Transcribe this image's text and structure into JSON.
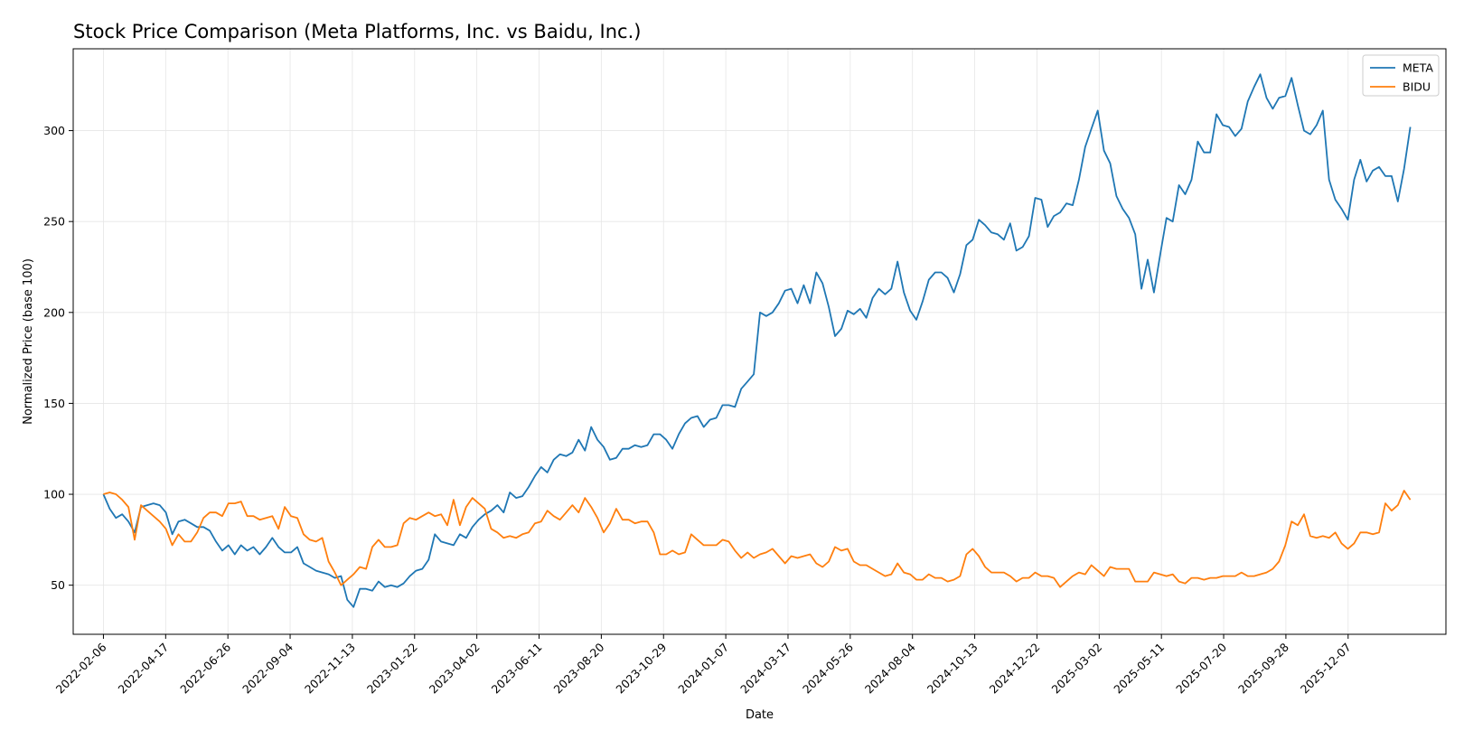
{
  "chart_data": {
    "type": "line",
    "title": "Stock Price Comparison (Meta Platforms, Inc. vs Baidu, Inc.)",
    "xlabel": "Date",
    "ylabel": "Normalized Price (base 100)",
    "x_start": "2022-02-06",
    "x_end": "2026-02-15",
    "x_ticks": [
      "2022-02-06",
      "2022-04-17",
      "2022-06-26",
      "2022-09-04",
      "2022-11-13",
      "2023-01-22",
      "2023-04-02",
      "2023-06-11",
      "2023-08-20",
      "2023-10-29",
      "2024-01-07",
      "2024-03-17",
      "2024-05-26",
      "2024-08-04",
      "2024-10-13",
      "2024-12-22",
      "2025-03-02",
      "2025-05-11",
      "2025-07-20",
      "2025-09-28",
      "2025-12-07"
    ],
    "y_ticks": [
      50,
      100,
      150,
      200,
      250,
      300
    ],
    "ylim": [
      23,
      345
    ],
    "xlim": [
      "2022-01-03",
      "2026-03-27"
    ],
    "grid": true,
    "legend_position": "top-right",
    "series": [
      {
        "name": "META",
        "color": "#1f77b4",
        "values": [
          100,
          92,
          87,
          89,
          85,
          79,
          93,
          94,
          95,
          94,
          90,
          78,
          85,
          86,
          84,
          82,
          82,
          80,
          74,
          69,
          72,
          67,
          72,
          69,
          71,
          67,
          71,
          76,
          71,
          68,
          68,
          71,
          62,
          60,
          58,
          57,
          56,
          54,
          55,
          42,
          38,
          48,
          48,
          47,
          52,
          49,
          50,
          49,
          51,
          55,
          58,
          59,
          64,
          78,
          74,
          73,
          72,
          78,
          76,
          82,
          86,
          89,
          91,
          94,
          90,
          101,
          98,
          99,
          104,
          110,
          115,
          112,
          119,
          122,
          121,
          123,
          130,
          124,
          137,
          130,
          126,
          119,
          120,
          125,
          125,
          127,
          126,
          127,
          133,
          133,
          130,
          125,
          133,
          139,
          142,
          143,
          137,
          141,
          142,
          149,
          149,
          148,
          158,
          162,
          166,
          200,
          198,
          200,
          205,
          212,
          213,
          205,
          215,
          205,
          222,
          216,
          203,
          187,
          191,
          201,
          199,
          202,
          197,
          208,
          213,
          210,
          213,
          228,
          211,
          201,
          196,
          206,
          218,
          222,
          222,
          219,
          211,
          221,
          237,
          240,
          251,
          248,
          244,
          243,
          240,
          249,
          234,
          236,
          242,
          263,
          262,
          247,
          253,
          255,
          260,
          259,
          273,
          291,
          301,
          311,
          289,
          282,
          264,
          257,
          252,
          243,
          213,
          229,
          211,
          232,
          252,
          250,
          270,
          265,
          273,
          294,
          288,
          288,
          309,
          303,
          302,
          297,
          301,
          316,
          324,
          331,
          318,
          312,
          318,
          319,
          329,
          314,
          300,
          298,
          303,
          311,
          273,
          262,
          257,
          251,
          273,
          284,
          272,
          278,
          280,
          275,
          275,
          261,
          279,
          302
        ]
      },
      {
        "name": "BIDU",
        "color": "#ff7f0e",
        "values": [
          100,
          101,
          100,
          97,
          93,
          75,
          94,
          91,
          88,
          85,
          81,
          72,
          78,
          74,
          74,
          79,
          87,
          90,
          90,
          88,
          95,
          95,
          96,
          88,
          88,
          86,
          87,
          88,
          81,
          93,
          88,
          87,
          78,
          75,
          74,
          76,
          63,
          57,
          50,
          53,
          56,
          60,
          59,
          71,
          75,
          71,
          71,
          72,
          84,
          87,
          86,
          88,
          90,
          88,
          89,
          83,
          97,
          83,
          93,
          98,
          95,
          92,
          81,
          79,
          76,
          77,
          76,
          78,
          79,
          84,
          85,
          91,
          88,
          86,
          90,
          94,
          90,
          98,
          93,
          87,
          79,
          84,
          92,
          86,
          86,
          84,
          85,
          85,
          79,
          67,
          67,
          69,
          67,
          68,
          78,
          75,
          72,
          72,
          72,
          75,
          74,
          69,
          65,
          68,
          65,
          67,
          68,
          70,
          66,
          62,
          66,
          65,
          66,
          67,
          62,
          60,
          63,
          71,
          69,
          70,
          63,
          61,
          61,
          59,
          57,
          55,
          56,
          62,
          57,
          56,
          53,
          53,
          56,
          54,
          54,
          52,
          53,
          55,
          67,
          70,
          66,
          60,
          57,
          57,
          57,
          55,
          52,
          54,
          54,
          57,
          55,
          55,
          54,
          49,
          52,
          55,
          57,
          56,
          61,
          58,
          55,
          60,
          59,
          59,
          59,
          52,
          52,
          52,
          57,
          56,
          55,
          56,
          52,
          51,
          54,
          54,
          53,
          54,
          54,
          55,
          55,
          55,
          57,
          55,
          55,
          56,
          57,
          59,
          63,
          72,
          85,
          83,
          89,
          77,
          76,
          77,
          76,
          79,
          73,
          70,
          73,
          79,
          79,
          78,
          79,
          95,
          91,
          94,
          102,
          97
        ]
      }
    ]
  }
}
